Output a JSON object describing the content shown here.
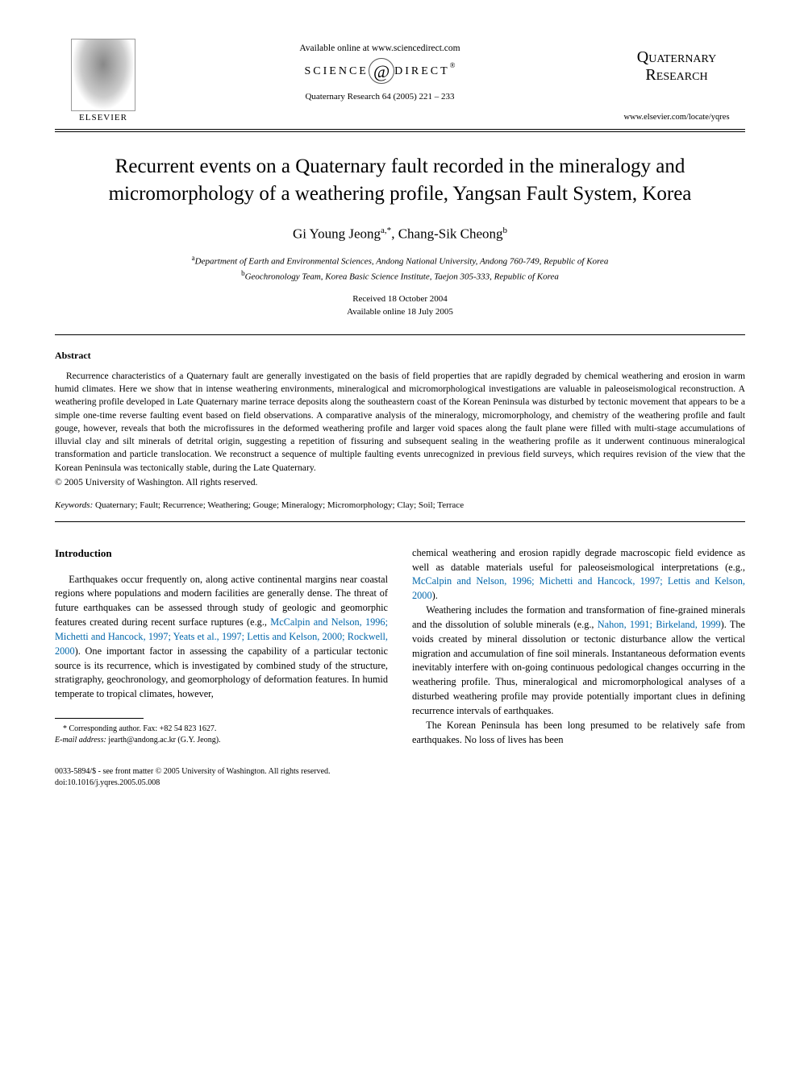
{
  "header": {
    "publisher_label": "ELSEVIER",
    "available_online": "Available online at www.sciencedirect.com",
    "sd_left": "SCIENCE",
    "sd_at": "@",
    "sd_right": "DIRECT",
    "sd_reg": "®",
    "citation": "Quaternary Research 64 (2005) 221 – 233",
    "journal_name_l1": "Quaternary",
    "journal_name_l2": "Research",
    "journal_url": "www.elsevier.com/locate/yqres"
  },
  "title": "Recurrent events on a Quaternary fault recorded in the mineralogy and micromorphology of a weathering profile, Yangsan Fault System, Korea",
  "authors": {
    "a1_name": "Gi Young Jeong",
    "a1_sup": "a,*",
    "sep": ", ",
    "a2_name": "Chang-Sik Cheong",
    "a2_sup": "b"
  },
  "affiliations": {
    "a_sup": "a",
    "a_text": "Department of Earth and Environmental Sciences, Andong National University, Andong 760-749, Republic of Korea",
    "b_sup": "b",
    "b_text": "Geochronology Team, Korea Basic Science Institute, Taejon 305-333, Republic of Korea"
  },
  "dates": {
    "received": "Received 18 October 2004",
    "online": "Available online 18 July 2005"
  },
  "abstract": {
    "heading": "Abstract",
    "body": "Recurrence characteristics of a Quaternary fault are generally investigated on the basis of field properties that are rapidly degraded by chemical weathering and erosion in warm humid climates. Here we show that in intense weathering environments, mineralogical and micromorphological investigations are valuable in paleoseismological reconstruction. A weathering profile developed in Late Quaternary marine terrace deposits along the southeastern coast of the Korean Peninsula was disturbed by tectonic movement that appears to be a simple one-time reverse faulting event based on field observations. A comparative analysis of the mineralogy, micromorphology, and chemistry of the weathering profile and fault gouge, however, reveals that both the microfissures in the deformed weathering profile and larger void spaces along the fault plane were filled with multi-stage accumulations of illuvial clay and silt minerals of detrital origin, suggesting a repetition of fissuring and subsequent sealing in the weathering profile as it underwent continuous mineralogical transformation and particle translocation. We reconstruct a sequence of multiple faulting events unrecognized in previous field surveys, which requires revision of the view that the Korean Peninsula was tectonically stable, during the Late Quaternary.",
    "copyright": "© 2005 University of Washington. All rights reserved."
  },
  "keywords": {
    "label": "Keywords:",
    "list": " Quaternary; Fault; Recurrence; Weathering; Gouge; Mineralogy; Micromorphology; Clay; Soil; Terrace"
  },
  "body": {
    "section_heading": "Introduction",
    "left_p1_a": "Earthquakes occur frequently on, along active continental margins near coastal regions where populations and modern facilities are generally dense. The threat of future earthquakes can be assessed through study of geologic and geomorphic features created during recent surface ruptures (e.g., ",
    "left_p1_cite": "McCalpin and Nelson, 1996; Michetti and Hancock, 1997; Yeats et al., 1997; Lettis and Kelson, 2000; Rockwell, 2000",
    "left_p1_b": "). One important factor in assessing the capability of a particular tectonic source is its recurrence, which is investigated by combined study of the structure, stratigraphy, geochronology, and geomorphology of deformation features. In humid temperate to tropical climates, however,",
    "right_p1_a": "chemical weathering and erosion rapidly degrade macroscopic field evidence as well as datable materials useful for paleoseismological interpretations (e.g., ",
    "right_p1_cite": "McCalpin and Nelson, 1996; Michetti and Hancock, 1997; Lettis and Kelson, 2000",
    "right_p1_b": ").",
    "right_p2_a": "Weathering includes the formation and transformation of fine-grained minerals and the dissolution of soluble minerals (e.g., ",
    "right_p2_cite": "Nahon, 1991; Birkeland, 1999",
    "right_p2_b": "). The voids created by mineral dissolution or tectonic disturbance allow the vertical migration and accumulation of fine soil minerals. Instantaneous deformation events inevitably interfere with on-going continuous pedological changes occurring in the weathering profile. Thus, mineralogical and micromorphological analyses of a disturbed weathering profile may provide potentially important clues in defining recurrence intervals of earthquakes.",
    "right_p3": "The Korean Peninsula has been long presumed to be relatively safe from earthquakes. No loss of lives has been"
  },
  "correspondence": {
    "line1": "* Corresponding author. Fax: +82 54 823 1627.",
    "email_label": "E-mail address:",
    "email_value": " jearth@andong.ac.kr (G.Y. Jeong)."
  },
  "footer": {
    "line1": "0033-5894/$ - see front matter © 2005 University of Washington. All rights reserved.",
    "line2": "doi:10.1016/j.yqres.2005.05.008"
  },
  "colors": {
    "text": "#000000",
    "link": "#0066aa",
    "background": "#ffffff"
  }
}
